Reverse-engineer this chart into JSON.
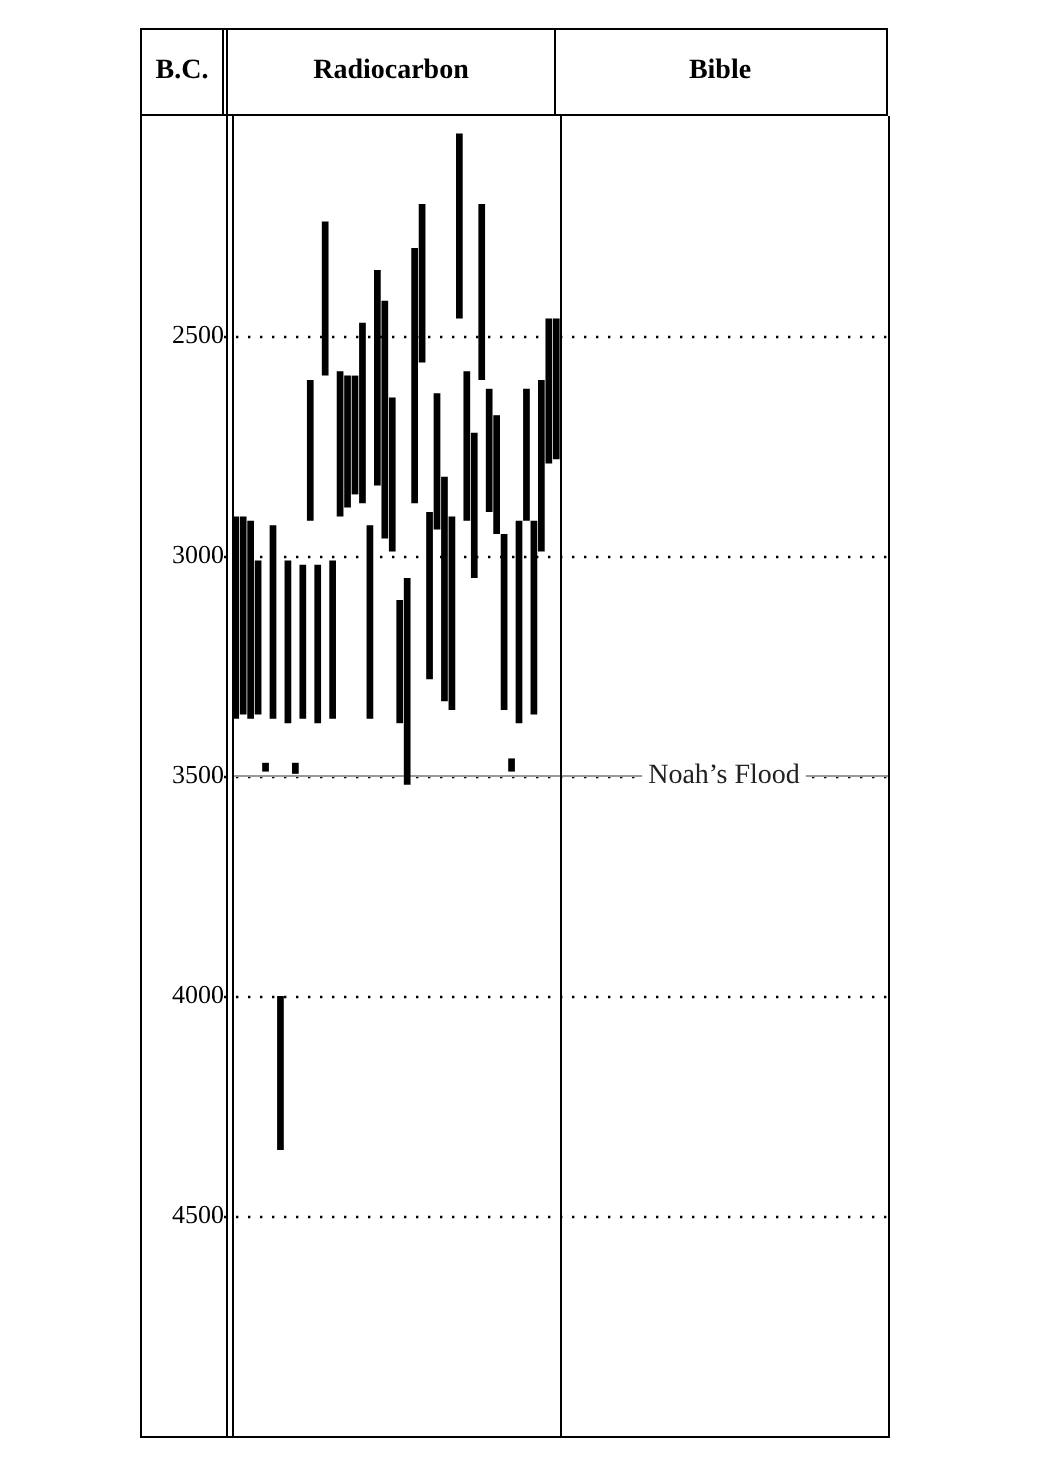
{
  "chart_data": {
    "type": "bar",
    "xlabel": "Radiocarbon",
    "ylabel": "B.C.",
    "annotations": [
      "Bible"
    ],
    "categories": [
      null,
      null,
      null,
      null,
      null,
      null,
      null,
      null,
      null,
      null,
      null,
      null,
      null,
      null,
      null,
      null,
      null,
      null,
      null,
      null,
      null,
      null,
      null,
      null,
      null,
      null,
      null,
      null,
      null,
      null,
      null,
      null,
      null,
      null,
      null,
      null,
      null,
      null,
      null,
      null,
      null,
      null,
      null,
      null
    ],
    "series": [
      {
        "color": "#000000",
        "base": [
          2910,
          2910,
          2920,
          3010,
          3470,
          2930,
          4000,
          3010,
          3470,
          3020,
          2600,
          3020,
          2240,
          3010,
          2580,
          2590,
          2590,
          2470,
          2930,
          2350,
          2420,
          2640,
          3100,
          3050,
          2300,
          2200,
          2900,
          2630,
          2820,
          2910,
          2040,
          2580,
          2720,
          2200,
          2620,
          2680,
          2950,
          3460,
          2920,
          2620,
          2920,
          2600,
          2460,
          2460
        ],
        "values": [
          460,
          450,
          450,
          350,
          20,
          440,
          350,
          370,
          25,
          350,
          320,
          360,
          350,
          360,
          330,
          300,
          270,
          410,
          440,
          490,
          540,
          350,
          280,
          470,
          580,
          360,
          380,
          310,
          510,
          440,
          420,
          340,
          330,
          400,
          280,
          270,
          400,
          30,
          460,
          300,
          440,
          390,
          330,
          320
        ]
      }
    ],
    "ylim": [
      5000,
      2000
    ],
    "yticks": [
      2500,
      3000,
      3500,
      4000,
      4500
    ],
    "grid": "y",
    "ref_lines": [
      {
        "axis": "y",
        "value": 3500,
        "label": "Noah’s Flood",
        "color": "#999999"
      }
    ]
  }
}
